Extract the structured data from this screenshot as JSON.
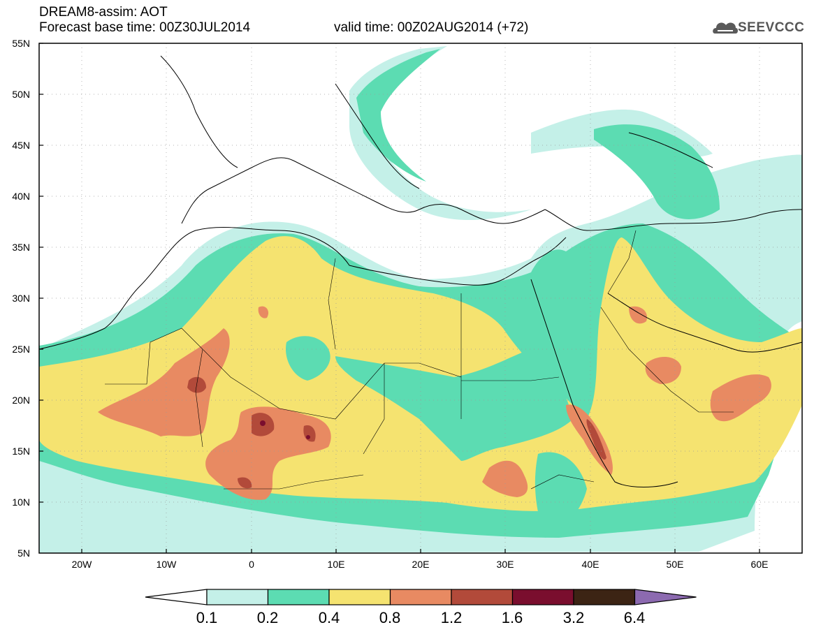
{
  "header": {
    "line1": "DREAM8-assim: AOT",
    "line2": "Forecast base time: 00Z30JUL2014",
    "valid": "valid time: 00Z02AUG2014 (+72)"
  },
  "logo": {
    "text": "SEEVCCC",
    "icon": "cloud-icon"
  },
  "axes": {
    "lat_labels": [
      "55N",
      "50N",
      "45N",
      "40N",
      "35N",
      "30N",
      "25N",
      "20N",
      "15N",
      "10N",
      "5N"
    ],
    "lon_labels": [
      "20W",
      "10W",
      "0",
      "10E",
      "20E",
      "30E",
      "40E",
      "50E",
      "60E"
    ],
    "lat_range": [
      5,
      55
    ],
    "lon_range": [
      -25,
      65
    ]
  },
  "colorbar": {
    "labels": [
      "0.1",
      "0.2",
      "0.4",
      "0.8",
      "1.2",
      "1.6",
      "3.2",
      "6.4"
    ],
    "colors": [
      "#c4f0e8",
      "#5cdcb2",
      "#f5e370",
      "#e88a62",
      "#b24a3a",
      "#7a0e2e",
      "#3c2414",
      "#8c6ab0"
    ]
  },
  "map": {
    "variable": "AOT",
    "palette": {
      "0.1-0.2": "#c4f0e8",
      "0.2-0.4": "#5cdcb2",
      "0.4-0.8": "#f5e370",
      "0.8-1.2": "#e88a62",
      "1.2-1.6": "#b24a3a",
      "1.6-3.2": "#7a0e2e"
    }
  }
}
